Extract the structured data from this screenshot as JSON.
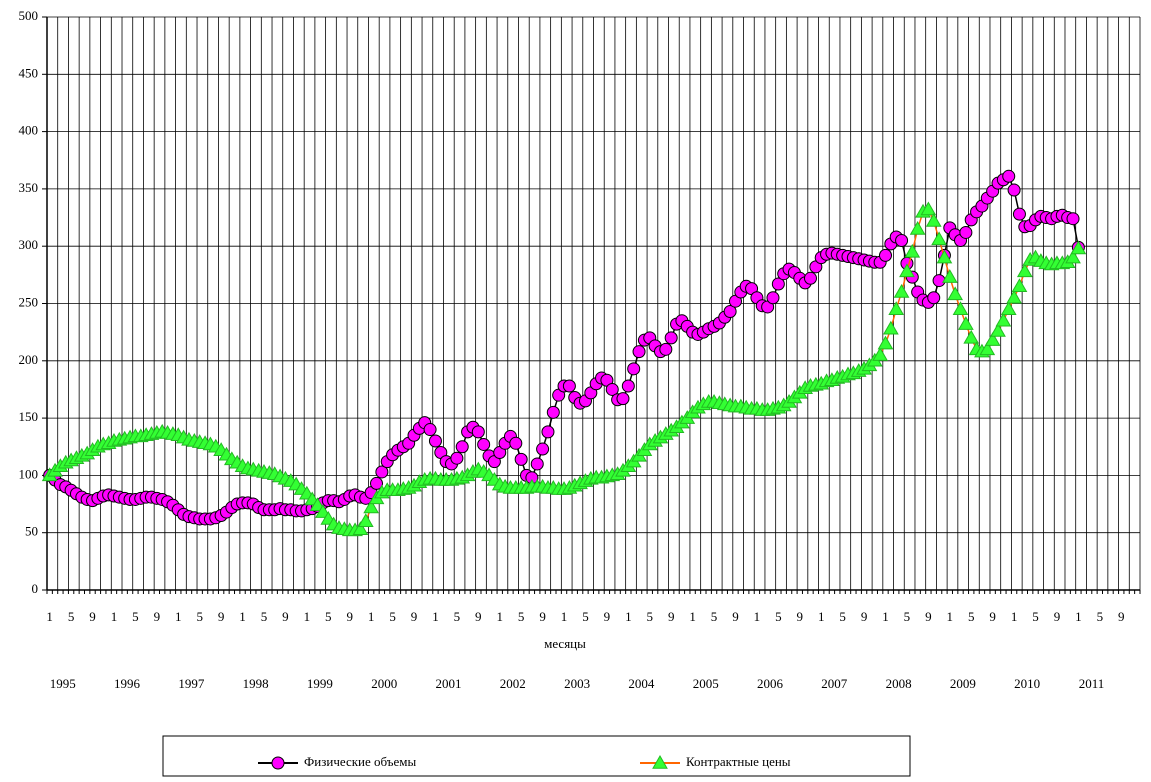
{
  "chart_data": {
    "type": "line",
    "x_label": "месяцы",
    "x_groups": [
      "1995",
      "1996",
      "1997",
      "1998",
      "1999",
      "2000",
      "2001",
      "2002",
      "2003",
      "2004",
      "2005",
      "2006",
      "2007",
      "2008",
      "2009",
      "2010",
      "2011"
    ],
    "categories": [
      "1",
      null,
      null,
      null,
      "5",
      null,
      null,
      null,
      "9",
      null,
      null,
      null,
      "1",
      null,
      null,
      null,
      "5",
      null,
      null,
      null,
      "9",
      null,
      null,
      null,
      "1",
      null,
      null,
      null,
      "5",
      null,
      null,
      null,
      "9",
      null,
      null,
      null,
      "1",
      null,
      null,
      null,
      "5",
      null,
      null,
      null,
      "9",
      null,
      null,
      null,
      "1",
      null,
      null,
      null,
      "5",
      null,
      null,
      null,
      "9",
      null,
      null,
      null,
      "1",
      null,
      null,
      null,
      "5",
      null,
      null,
      null,
      "9",
      null,
      null,
      null,
      "1",
      null,
      null,
      null,
      "5",
      null,
      null,
      null,
      "9",
      null,
      null,
      null,
      "1",
      null,
      null,
      null,
      "5",
      null,
      null,
      null,
      "9",
      null,
      null,
      null,
      "1",
      null,
      null,
      null,
      "5",
      null,
      null,
      null,
      "9",
      null,
      null,
      null,
      "1",
      null,
      null,
      null,
      "5",
      null,
      null,
      null,
      "9",
      null,
      null,
      null,
      "1",
      null,
      null,
      null,
      "5",
      null,
      null,
      null,
      "9",
      null,
      null,
      null,
      "1",
      null,
      null,
      null,
      "5",
      null,
      null,
      null,
      "9",
      null,
      null,
      null,
      "1",
      null,
      null,
      null,
      "5",
      null,
      null,
      null,
      "9",
      null,
      null,
      null,
      "1",
      null,
      null,
      null,
      "5",
      null,
      null,
      null,
      "9",
      null,
      null,
      null,
      "1",
      null,
      null,
      null,
      "5",
      null,
      null,
      null,
      "9",
      null,
      null,
      null,
      "1",
      null,
      null,
      null,
      "5",
      null,
      null,
      null,
      "9",
      null,
      null,
      null,
      "1",
      null,
      null,
      null,
      "5",
      null,
      null,
      null,
      "9",
      null,
      null,
      null
    ],
    "series": [
      {
        "name": "Физические объемы",
        "color": "#ff00ff",
        "line_color": "#000000",
        "marker": "circle",
        "values": [
          100,
          96,
          92,
          90,
          87,
          84,
          81,
          79,
          78,
          80,
          82,
          83,
          82,
          81,
          80,
          79,
          79,
          80,
          81,
          81,
          80,
          79,
          77,
          74,
          70,
          66,
          64,
          63,
          62,
          62,
          62,
          63,
          65,
          68,
          72,
          75,
          76,
          76,
          75,
          72,
          70,
          70,
          70,
          71,
          70,
          70,
          69,
          69,
          70,
          71,
          73,
          76,
          78,
          78,
          77,
          79,
          82,
          83,
          81,
          80,
          85,
          93,
          103,
          112,
          118,
          122,
          125,
          128,
          135,
          141,
          146,
          140,
          130,
          120,
          112,
          110,
          115,
          125,
          138,
          142,
          138,
          127,
          117,
          112,
          120,
          128,
          134,
          128,
          114,
          100,
          98,
          110,
          123,
          138,
          155,
          170,
          178,
          178,
          168,
          163,
          165,
          172,
          180,
          185,
          183,
          175,
          166,
          167,
          178,
          193,
          208,
          218,
          220,
          213,
          208,
          210,
          220,
          232,
          235,
          230,
          225,
          223,
          225,
          228,
          230,
          233,
          238,
          243,
          252,
          260,
          265,
          263,
          255,
          248,
          247,
          255,
          267,
          276,
          280,
          277,
          272,
          268,
          272,
          282,
          290,
          293,
          294,
          293,
          292,
          291,
          290,
          289,
          288,
          287,
          286,
          286,
          292,
          302,
          308,
          305,
          285,
          273,
          260,
          253,
          251,
          255,
          270,
          292,
          316,
          310,
          305,
          312,
          323,
          330,
          335,
          342,
          348,
          355,
          358,
          361,
          349,
          328,
          317,
          318,
          323,
          326,
          325,
          324,
          326,
          327,
          325,
          324,
          299,
          null,
          null,
          null,
          null,
          null,
          null,
          null,
          null,
          null,
          null,
          null
        ]
      },
      {
        "name": "Контрактные цены",
        "color": "#33ff33",
        "line_color": "#ff6600",
        "marker": "triangle",
        "values": [
          100,
          104,
          108,
          111,
          113,
          115,
          117,
          119,
          122,
          125,
          127,
          128,
          130,
          131,
          132,
          133,
          134,
          134,
          135,
          136,
          137,
          138,
          137,
          136,
          135,
          133,
          131,
          130,
          129,
          128,
          127,
          125,
          122,
          118,
          114,
          111,
          108,
          106,
          105,
          104,
          103,
          102,
          101,
          99,
          97,
          95,
          92,
          88,
          84,
          79,
          74,
          68,
          62,
          57,
          54,
          53,
          52,
          52,
          53,
          60,
          72,
          80,
          85,
          87,
          87,
          87,
          88,
          89,
          91,
          94,
          96,
          97,
          97,
          96,
          96,
          96,
          97,
          98,
          100,
          103,
          105,
          103,
          100,
          96,
          92,
          90,
          89,
          89,
          89,
          89,
          90,
          90,
          90,
          89,
          89,
          88,
          88,
          89,
          91,
          93,
          95,
          97,
          98,
          98,
          99,
          100,
          101,
          104,
          108,
          112,
          117,
          122,
          127,
          130,
          133,
          136,
          139,
          142,
          146,
          150,
          155,
          159,
          162,
          164,
          164,
          163,
          162,
          161,
          160,
          160,
          159,
          158,
          158,
          157,
          157,
          158,
          159,
          161,
          164,
          168,
          172,
          176,
          178,
          179,
          180,
          182,
          183,
          185,
          186,
          188,
          189,
          191,
          193,
          196,
          200,
          205,
          215,
          228,
          245,
          260,
          278,
          295,
          315,
          330,
          332,
          322,
          306,
          290,
          273,
          258,
          245,
          232,
          220,
          210,
          208,
          210,
          218,
          226,
          235,
          245,
          255,
          265,
          278,
          288,
          290,
          287,
          285,
          284,
          285,
          285,
          286,
          290,
          298,
          null,
          null,
          null,
          null,
          null,
          null,
          null,
          null,
          null,
          null,
          null
        ]
      }
    ],
    "ylim": [
      0,
      500
    ],
    "yticks": [
      0,
      50,
      100,
      150,
      200,
      250,
      300,
      350,
      400,
      450,
      500
    ],
    "grid": true,
    "legend": "bottom"
  }
}
